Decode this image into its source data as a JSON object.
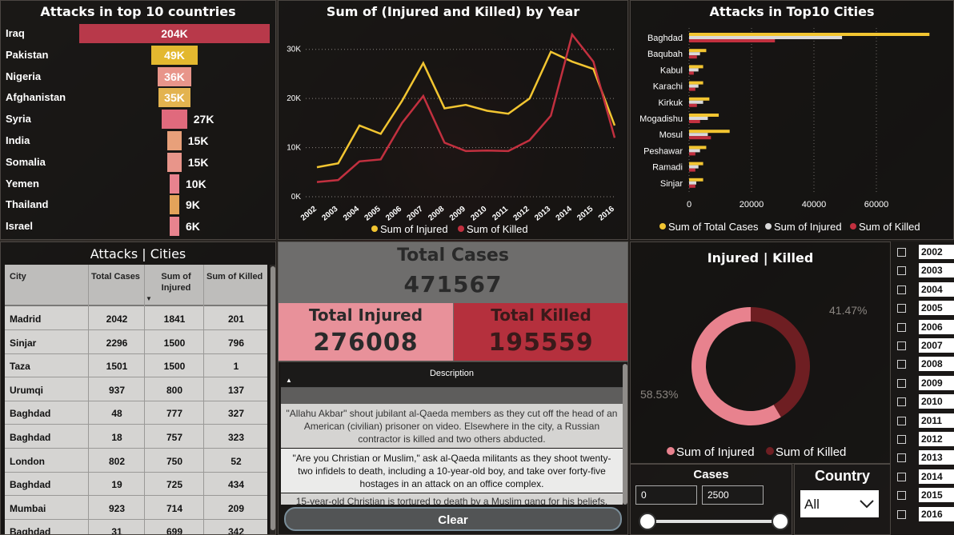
{
  "countries_panel": {
    "title": "Attacks in top 10 countries",
    "rows": [
      {
        "name": "Iraq",
        "label": "204K",
        "value": 204,
        "color": "#b8394a"
      },
      {
        "name": "Pakistan",
        "label": "49K",
        "value": 49,
        "color": "#e3b82f"
      },
      {
        "name": "Nigeria",
        "label": "36K",
        "value": 36,
        "color": "#e8958a"
      },
      {
        "name": "Afghanistan",
        "label": "35K",
        "value": 35,
        "color": "#e3b34f"
      },
      {
        "name": "Syria",
        "label": "27K",
        "value": 27,
        "color": "#e06a7d"
      },
      {
        "name": "India",
        "label": "15K",
        "value": 15,
        "color": "#e8a07a"
      },
      {
        "name": "Somalia",
        "label": "15K",
        "value": 15,
        "color": "#e8958a"
      },
      {
        "name": "Yemen",
        "label": "10K",
        "value": 10,
        "color": "#e8828e"
      },
      {
        "name": "Thailand",
        "label": "9K",
        "value": 9,
        "color": "#e3a35a"
      },
      {
        "name": "Israel",
        "label": "6K",
        "value": 6,
        "color": "#e8838e"
      }
    ]
  },
  "line_panel": {
    "title": "Sum of (Injured and Killed) by Year",
    "legend": [
      {
        "name": "Sum of Injured",
        "color": "#f2c531"
      },
      {
        "name": "Sum of Killed",
        "color": "#c2303f"
      }
    ]
  },
  "cities_panel": {
    "title": "Attacks in Top10 Cities",
    "legend": [
      {
        "name": "Sum of Total Cases",
        "color": "#f2c531"
      },
      {
        "name": "Sum of Injured",
        "color": "#d9d9d9"
      },
      {
        "name": "Sum of Killed",
        "color": "#c2303f"
      }
    ]
  },
  "chart_data": [
    {
      "type": "bar",
      "title": "Attacks in top 10 countries",
      "categories": [
        "Iraq",
        "Pakistan",
        "Nigeria",
        "Afghanistan",
        "Syria",
        "India",
        "Somalia",
        "Yemen",
        "Thailand",
        "Israel"
      ],
      "values": [
        204000,
        49000,
        36000,
        35000,
        27000,
        15000,
        15000,
        10000,
        9000,
        6000
      ]
    },
    {
      "type": "line",
      "title": "Sum of (Injured and Killed) by Year",
      "x": [
        "2002",
        "2003",
        "2004",
        "2005",
        "2006",
        "2007",
        "2008",
        "2009",
        "2010",
        "2011",
        "2012",
        "2013",
        "2014",
        "2015",
        "2016"
      ],
      "ylim": [
        0,
        35000
      ],
      "yticks": [
        "0K",
        "10K",
        "20K",
        "30K"
      ],
      "series": [
        {
          "name": "Sum of Injured",
          "values": [
            6000,
            6800,
            14500,
            12800,
            19500,
            27200,
            18000,
            18700,
            17500,
            16900,
            20000,
            29500,
            27500,
            26000,
            14500
          ]
        },
        {
          "name": "Sum of Killed",
          "values": [
            3000,
            3400,
            7200,
            7600,
            15000,
            20500,
            11000,
            9300,
            9400,
            9300,
            11500,
            16500,
            33000,
            27500,
            12000
          ]
        }
      ]
    },
    {
      "type": "bar",
      "orientation": "horizontal",
      "title": "Attacks in Top10 Cities",
      "categories": [
        "Baghdad",
        "Baqubah",
        "Kabul",
        "Karachi",
        "Kirkuk",
        "Mogadishu",
        "Mosul",
        "Peshawar",
        "Ramadi",
        "Sinjar"
      ],
      "xlim": [
        0,
        80000
      ],
      "xticks": [
        "0",
        "20000",
        "40000",
        "60000"
      ],
      "series": [
        {
          "name": "Sum of Total Cases",
          "values": [
            77000,
            5500,
            4500,
            4500,
            6500,
            9500,
            13000,
            5500,
            4500,
            4500
          ]
        },
        {
          "name": "Sum of Injured",
          "values": [
            49000,
            3500,
            3000,
            3000,
            4500,
            6000,
            6000,
            3500,
            3000,
            2300
          ]
        },
        {
          "name": "Sum of Killed",
          "values": [
            27500,
            2500,
            1500,
            2000,
            2500,
            3500,
            7000,
            2000,
            2000,
            2000
          ]
        }
      ]
    },
    {
      "type": "pie",
      "title": "Injured | Killed",
      "categories": [
        "Sum of Injured",
        "Sum of Killed"
      ],
      "values": [
        58.53,
        41.47
      ],
      "labels": [
        "58.53%",
        "41.47%"
      ]
    }
  ],
  "table_panel": {
    "title": "Attacks | Cities",
    "headers": [
      "City",
      "Total Cases",
      "Sum of Injured",
      "Sum of Killed"
    ],
    "rows": [
      [
        "Madrid",
        "2042",
        "1841",
        "201"
      ],
      [
        "Sinjar",
        "2296",
        "1500",
        "796"
      ],
      [
        "Taza",
        "1501",
        "1500",
        "1"
      ],
      [
        "Urumqi",
        "937",
        "800",
        "137"
      ],
      [
        "Baghdad",
        "48",
        "777",
        "327"
      ],
      [
        "Baghdad",
        "18",
        "757",
        "323"
      ],
      [
        "London",
        "802",
        "750",
        "52"
      ],
      [
        "Baghdad",
        "19",
        "725",
        "434"
      ],
      [
        "Mumbai",
        "923",
        "714",
        "209"
      ],
      [
        "Baghdad",
        "31",
        "699",
        "342"
      ]
    ]
  },
  "kpi": {
    "total_cases_label": "Total Cases",
    "total_cases_value": "471567",
    "total_injured_label": "Total Injured",
    "total_injured_value": "276008",
    "total_killed_label": "Total Killed",
    "total_killed_value": "195559"
  },
  "description_panel": {
    "header": "Description",
    "rows": [
      "\"Allahu Akbar\" shout jubilant al-Qaeda members as they cut off the head of an American (civilian) prisoner on video. Elsewhere in the city, a Russian contractor is killed and two others abducted.",
      "\"Are you Christian or Muslim,\" ask al-Qaeda militants as they shoot twenty-two infidels to death, including a 10-year-old boy, and take over forty-five hostages in an attack on an office complex.",
      "15-year-old Christian is tortured to death by a Muslim gang for his beliefs."
    ],
    "clear_label": "Clear"
  },
  "donut_panel": {
    "title": "Injured | Killed",
    "legend": [
      {
        "name": "Sum of Injured",
        "color": "#e8828e"
      },
      {
        "name": "Sum of Killed",
        "color": "#6e1e22"
      }
    ],
    "injured_pct": "58.53%",
    "killed_pct": "41.47%"
  },
  "slider_panel": {
    "title": "Cases",
    "min_value": "0",
    "max_value": "2500"
  },
  "country_panel": {
    "title": "Country",
    "selected": "All"
  },
  "years_panel": {
    "years": [
      "2002",
      "2003",
      "2004",
      "2005",
      "2006",
      "2007",
      "2008",
      "2009",
      "2010",
      "2011",
      "2012",
      "2013",
      "2014",
      "2015",
      "2016"
    ]
  }
}
